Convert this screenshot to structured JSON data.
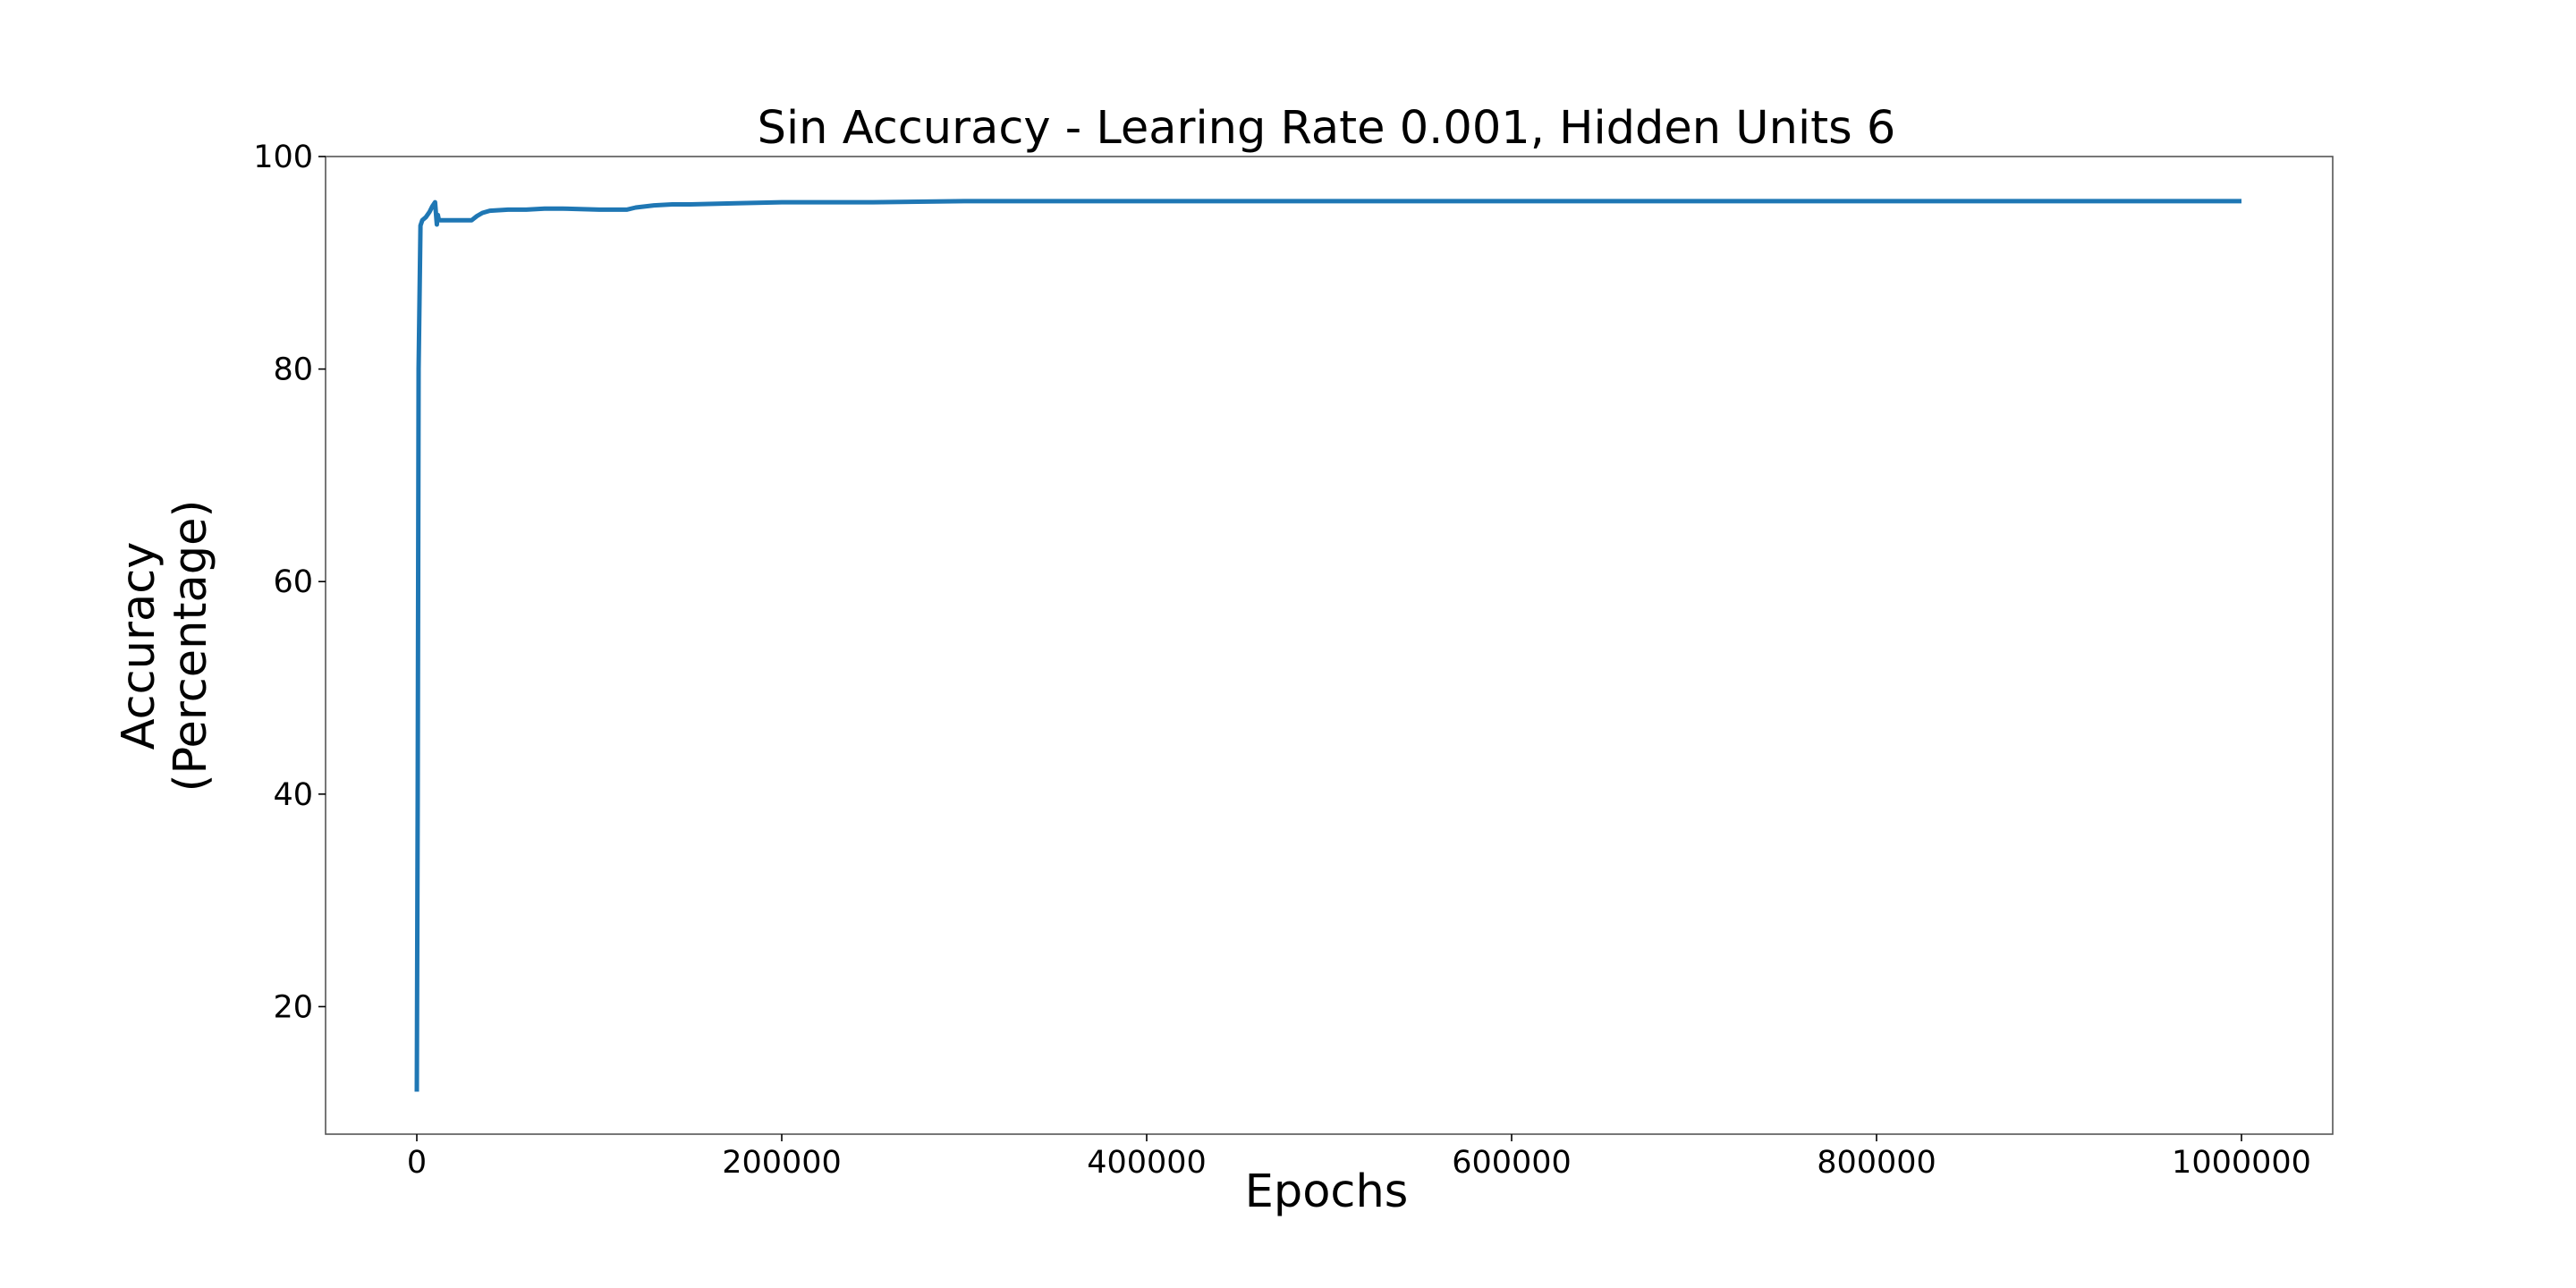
{
  "chart_data": {
    "type": "line",
    "title": "Sin Accuracy - Learing Rate 0.001, Hidden Units 6",
    "xlabel": "Epochs",
    "ylabel_lines": [
      "Accuracy",
      "(Percentage)"
    ],
    "xlim": [
      -50000,
      1050000
    ],
    "ylim": [
      8,
      100
    ],
    "xticks": [
      0,
      200000,
      400000,
      600000,
      800000,
      1000000
    ],
    "xtick_labels": [
      "0",
      "200000",
      "400000",
      "600000",
      "800000",
      "1000000"
    ],
    "yticks": [
      20,
      40,
      60,
      80,
      100
    ],
    "ytick_labels": [
      "20",
      "40",
      "60",
      "80",
      "100"
    ],
    "grid": false,
    "series": [
      {
        "color": "#1f77b4",
        "x": [
          0,
          500,
          1000,
          2000,
          3000,
          5000,
          7000,
          8500,
          10000,
          11000,
          11500,
          12000,
          13000,
          15000,
          20000,
          30000,
          33000,
          36000,
          40000,
          50000,
          60000,
          70000,
          80000,
          100000,
          115000,
          120000,
          130000,
          140000,
          150000,
          175000,
          200000,
          250000,
          300000,
          400000,
          500000,
          600000,
          700000,
          800000,
          900000,
          1000000
        ],
        "y": [
          12,
          40,
          80,
          93.5,
          94,
          94.3,
          94.8,
          95.3,
          95.7,
          93.6,
          94.5,
          94.1,
          94.0,
          94.0,
          94.0,
          94.0,
          94.4,
          94.7,
          94.9,
          95.0,
          95.0,
          95.1,
          95.1,
          95.0,
          95.0,
          95.2,
          95.4,
          95.5,
          95.5,
          95.6,
          95.7,
          95.7,
          95.8,
          95.8,
          95.8,
          95.8,
          95.8,
          95.8,
          95.8,
          95.8
        ]
      }
    ]
  }
}
